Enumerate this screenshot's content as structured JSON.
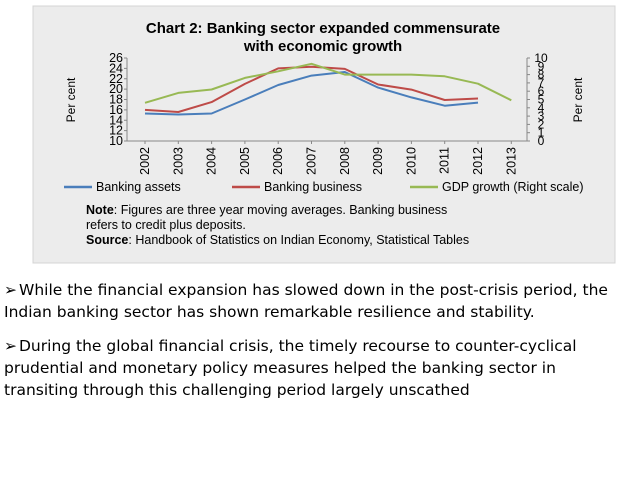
{
  "chart_data": {
    "type": "line",
    "title": "Chart 2: Banking sector expanded commensurate with economic growth",
    "x": [
      "2002",
      "2003",
      "2004",
      "2005",
      "2006",
      "2007",
      "2008",
      "2009",
      "2010",
      "2011",
      "2012",
      "2013"
    ],
    "ylabel_left": "Per cent",
    "ylabel_right": "Per cent",
    "yticks_left": [
      "10",
      "12",
      "14",
      "16",
      "18",
      "20",
      "22",
      "24",
      "26"
    ],
    "yticks_right": [
      "0",
      "1",
      "2",
      "3",
      "4",
      "5",
      "6",
      "7",
      "8",
      "9",
      "10"
    ],
    "ylim_left": [
      10,
      26
    ],
    "ylim_right": [
      0,
      10
    ],
    "grid": false,
    "legend_position": "bottom",
    "series": [
      {
        "name": "Banking assets",
        "axis": "left",
        "color": "#4a7ebb",
        "values": [
          15.3,
          15.1,
          15.3,
          18,
          20.8,
          22.6,
          23.3,
          20.3,
          18.4,
          16.8,
          17.4,
          null
        ]
      },
      {
        "name": "Banking business",
        "axis": "left",
        "color": "#be4b48",
        "values": [
          16,
          15.6,
          17.5,
          21,
          24,
          24.3,
          23.9,
          20.9,
          19.9,
          17.9,
          18.2,
          null
        ]
      },
      {
        "name": "GDP growth (Right scale)",
        "axis": "right",
        "color": "#98b954",
        "values": [
          4.6,
          5.8,
          6.2,
          7.6,
          8.4,
          9.3,
          8.0,
          8.0,
          8.0,
          7.8,
          6.9,
          4.9
        ]
      }
    ],
    "note_label": "Note",
    "note_text": ": Figures are three year moving averages. Banking business",
    "note_text2": "refers to credit plus deposits.",
    "source_label": "Source",
    "source_text": ": Handbook of Statistics on Indian Economy, Statistical Tables"
  },
  "bullets": [
    {
      "marker": "➢",
      "text": "While the financial expansion has slowed down in the post-crisis period, the Indian banking sector has shown remarkable resilience and stability."
    },
    {
      "marker": "➢",
      "text": "During the global financial crisis, the timely recourse to counter-cyclical prudential and monetary policy measures helped the banking sector in transiting through this challenging period largely unscathed"
    }
  ]
}
